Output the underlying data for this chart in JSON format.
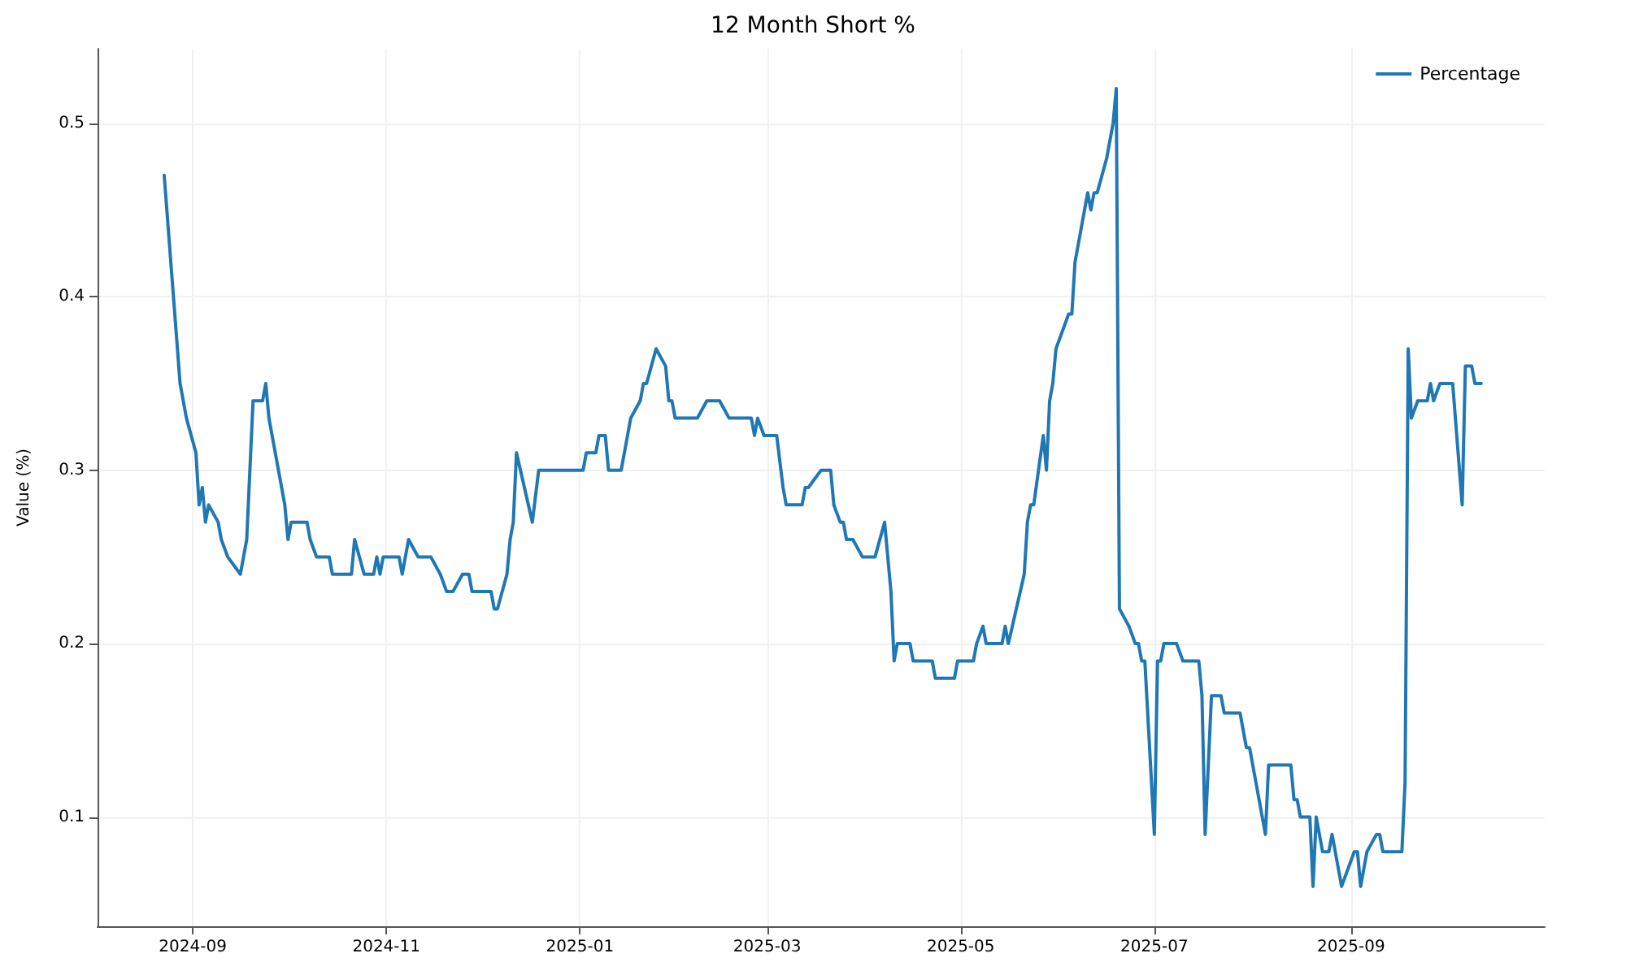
{
  "chart_data": {
    "type": "line",
    "title": "12 Month Short %",
    "ylabel": "Value (%)",
    "xlim": [
      "2024-08-02",
      "2025-11-01"
    ],
    "xticks": [
      {
        "value": "2024-09-01",
        "label": "2024-09"
      },
      {
        "value": "2024-11-01",
        "label": "2024-11"
      },
      {
        "value": "2025-01-01",
        "label": "2025-01"
      },
      {
        "value": "2025-03-01",
        "label": "2025-03"
      },
      {
        "value": "2025-05-01",
        "label": "2025-05"
      },
      {
        "value": "2025-07-01",
        "label": "2025-07"
      },
      {
        "value": "2025-09-01",
        "label": "2025-09"
      }
    ],
    "ylim": [
      0.037,
      0.543
    ],
    "yticks": [
      0.1,
      0.2,
      0.3,
      0.4,
      0.5
    ],
    "grid": true,
    "legend": "top right",
    "marker": "none",
    "line_style": "solid",
    "x": [
      "2024-08-23",
      "2024-08-28",
      "2024-08-30",
      "2024-09-02",
      "2024-09-03",
      "2024-09-04",
      "2024-09-05",
      "2024-09-06",
      "2024-09-09",
      "2024-09-10",
      "2024-09-12",
      "2024-09-16",
      "2024-09-18",
      "2024-09-20",
      "2024-09-23",
      "2024-09-24",
      "2024-09-25",
      "2024-09-30",
      "2024-10-01",
      "2024-10-02",
      "2024-10-07",
      "2024-10-08",
      "2024-10-10",
      "2024-10-14",
      "2024-10-15",
      "2024-10-21",
      "2024-10-22",
      "2024-10-25",
      "2024-10-28",
      "2024-10-29",
      "2024-10-30",
      "2024-10-31",
      "2024-11-05",
      "2024-11-06",
      "2024-11-08",
      "2024-11-11",
      "2024-11-15",
      "2024-11-18",
      "2024-11-20",
      "2024-11-22",
      "2024-11-25",
      "2024-11-27",
      "2024-11-28",
      "2024-12-04",
      "2024-12-05",
      "2024-12-06",
      "2024-12-09",
      "2024-12-10",
      "2024-12-11",
      "2024-12-12",
      "2024-12-17",
      "2024-12-19",
      "2025-01-02",
      "2025-01-03",
      "2025-01-06",
      "2025-01-07",
      "2025-01-09",
      "2025-01-10",
      "2025-01-14",
      "2025-01-17",
      "2025-01-20",
      "2025-01-21",
      "2025-01-22",
      "2025-01-25",
      "2025-01-28",
      "2025-01-29",
      "2025-01-30",
      "2025-01-31",
      "2025-02-07",
      "2025-02-10",
      "2025-02-14",
      "2025-02-17",
      "2025-02-24",
      "2025-02-25",
      "2025-02-26",
      "2025-02-28",
      "2025-03-04",
      "2025-03-06",
      "2025-03-07",
      "2025-03-12",
      "2025-03-13",
      "2025-03-14",
      "2025-03-18",
      "2025-03-21",
      "2025-03-22",
      "2025-03-24",
      "2025-03-25",
      "2025-03-26",
      "2025-03-28",
      "2025-03-31",
      "2025-04-04",
      "2025-04-07",
      "2025-04-09",
      "2025-04-10",
      "2025-04-11",
      "2025-04-15",
      "2025-04-16",
      "2025-04-22",
      "2025-04-23",
      "2025-04-29",
      "2025-04-30",
      "2025-05-05",
      "2025-05-06",
      "2025-05-08",
      "2025-05-09",
      "2025-05-14",
      "2025-05-15",
      "2025-05-16",
      "2025-05-21",
      "2025-05-22",
      "2025-05-23",
      "2025-05-24",
      "2025-05-27",
      "2025-05-28",
      "2025-05-29",
      "2025-05-30",
      "2025-05-31",
      "2025-06-02",
      "2025-06-04",
      "2025-06-05",
      "2025-06-06",
      "2025-06-10",
      "2025-06-11",
      "2025-06-12",
      "2025-06-13",
      "2025-06-16",
      "2025-06-18",
      "2025-06-19",
      "2025-06-20",
      "2025-06-23",
      "2025-06-25",
      "2025-06-26",
      "2025-06-27",
      "2025-06-28",
      "2025-07-01",
      "2025-07-02",
      "2025-07-03",
      "2025-07-04",
      "2025-07-08",
      "2025-07-10",
      "2025-07-15",
      "2025-07-16",
      "2025-07-17",
      "2025-07-19",
      "2025-07-22",
      "2025-07-23",
      "2025-07-28",
      "2025-07-30",
      "2025-07-31",
      "2025-08-05",
      "2025-08-06",
      "2025-08-13",
      "2025-08-14",
      "2025-08-15",
      "2025-08-16",
      "2025-08-19",
      "2025-08-20",
      "2025-08-21",
      "2025-08-23",
      "2025-08-25",
      "2025-08-26",
      "2025-08-29",
      "2025-09-02",
      "2025-09-03",
      "2025-09-04",
      "2025-09-06",
      "2025-09-09",
      "2025-09-10",
      "2025-09-11",
      "2025-09-17",
      "2025-09-18",
      "2025-09-19",
      "2025-09-20",
      "2025-09-22",
      "2025-09-25",
      "2025-09-26",
      "2025-09-27",
      "2025-09-29",
      "2025-10-03",
      "2025-10-06",
      "2025-10-07",
      "2025-10-09",
      "2025-10-10",
      "2025-10-12"
    ],
    "series": [
      {
        "name": "Percentage",
        "color": "#1f77b4",
        "values": [
          0.47,
          0.35,
          0.33,
          0.31,
          0.28,
          0.29,
          0.27,
          0.28,
          0.27,
          0.26,
          0.25,
          0.24,
          0.26,
          0.34,
          0.34,
          0.35,
          0.33,
          0.28,
          0.26,
          0.27,
          0.27,
          0.26,
          0.25,
          0.25,
          0.24,
          0.24,
          0.26,
          0.24,
          0.24,
          0.25,
          0.24,
          0.25,
          0.25,
          0.24,
          0.26,
          0.25,
          0.25,
          0.24,
          0.23,
          0.23,
          0.24,
          0.24,
          0.23,
          0.23,
          0.22,
          0.22,
          0.24,
          0.26,
          0.27,
          0.31,
          0.27,
          0.3,
          0.3,
          0.31,
          0.31,
          0.32,
          0.32,
          0.3,
          0.3,
          0.33,
          0.34,
          0.35,
          0.35,
          0.37,
          0.36,
          0.34,
          0.34,
          0.33,
          0.33,
          0.34,
          0.34,
          0.33,
          0.33,
          0.32,
          0.33,
          0.32,
          0.32,
          0.29,
          0.28,
          0.28,
          0.29,
          0.29,
          0.3,
          0.3,
          0.28,
          0.27,
          0.27,
          0.26,
          0.26,
          0.25,
          0.25,
          0.27,
          0.23,
          0.19,
          0.2,
          0.2,
          0.19,
          0.19,
          0.18,
          0.18,
          0.19,
          0.19,
          0.2,
          0.21,
          0.2,
          0.2,
          0.21,
          0.2,
          0.24,
          0.27,
          0.28,
          0.28,
          0.32,
          0.3,
          0.34,
          0.35,
          0.37,
          0.38,
          0.39,
          0.39,
          0.42,
          0.46,
          0.45,
          0.46,
          0.46,
          0.48,
          0.5,
          0.52,
          0.22,
          0.21,
          0.2,
          0.2,
          0.19,
          0.19,
          0.09,
          0.19,
          0.19,
          0.2,
          0.2,
          0.19,
          0.19,
          0.17,
          0.09,
          0.17,
          0.17,
          0.16,
          0.16,
          0.14,
          0.14,
          0.09,
          0.13,
          0.13,
          0.11,
          0.11,
          0.1,
          0.1,
          0.06,
          0.1,
          0.08,
          0.08,
          0.09,
          0.06,
          0.08,
          0.08,
          0.06,
          0.08,
          0.09,
          0.09,
          0.08,
          0.08,
          0.12,
          0.37,
          0.33,
          0.34,
          0.34,
          0.35,
          0.34,
          0.35,
          0.35,
          0.28,
          0.36,
          0.36,
          0.35,
          0.35
        ]
      }
    ]
  }
}
